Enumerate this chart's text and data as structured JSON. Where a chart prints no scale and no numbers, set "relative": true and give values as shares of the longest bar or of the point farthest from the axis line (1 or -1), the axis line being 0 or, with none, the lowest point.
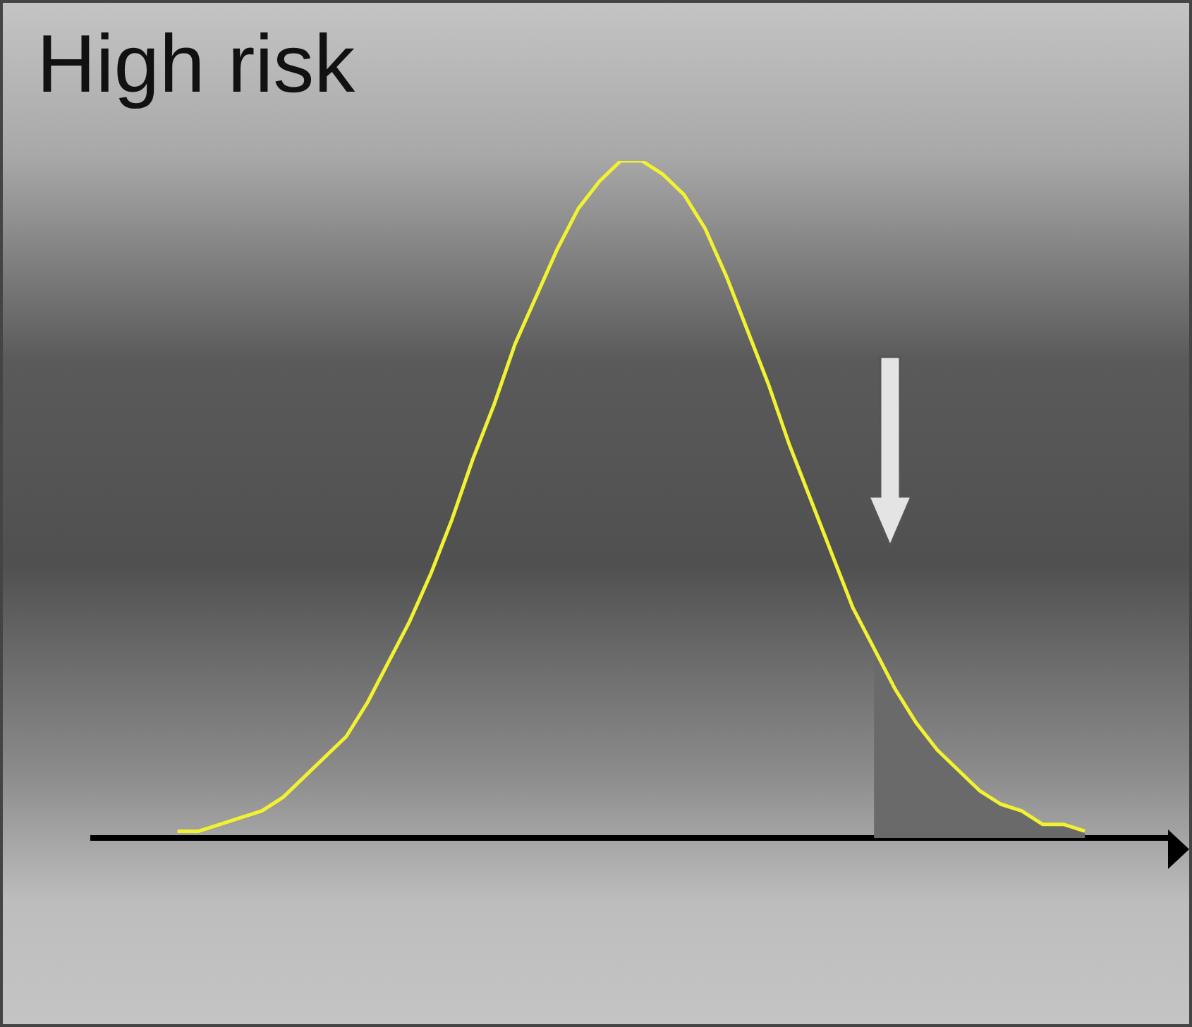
{
  "chart_data": {
    "type": "line",
    "title": "High risk",
    "relative": true,
    "categories": [
      null,
      null,
      null,
      null,
      null,
      null,
      null,
      null,
      null,
      null,
      null,
      null,
      null,
      null,
      null,
      null,
      null,
      null,
      null,
      null,
      null,
      null,
      null,
      null,
      null,
      null,
      null,
      null,
      null,
      null,
      null,
      null,
      null,
      null,
      null,
      null,
      null,
      null,
      null,
      null,
      null,
      null,
      null,
      null,
      null,
      null,
      null,
      null,
      null,
      null,
      null,
      null
    ],
    "series": [
      {
        "type": "line",
        "color": "#f2f230",
        "values": [
          null,
          null,
          null,
          null,
          0.01,
          0.01,
          0.02,
          0.03,
          0.04,
          0.06,
          0.09,
          0.12,
          0.15,
          0.2,
          0.26,
          0.32,
          0.39,
          0.47,
          0.56,
          0.64,
          0.73,
          0.8,
          0.87,
          0.93,
          0.97,
          1,
          1,
          0.98,
          0.95,
          0.9,
          0.83,
          0.75,
          0.67,
          0.58,
          0.5,
          0.42,
          0.34,
          0.28,
          0.22,
          0.17,
          0.13,
          0.1,
          0.07,
          0.05,
          0.04,
          0.02,
          0.02,
          0.01,
          null,
          null,
          null,
          null
        ]
      },
      {
        "type": "area",
        "color": "#6a6a6a",
        "values": [
          null,
          null,
          null,
          null,
          null,
          null,
          null,
          null,
          null,
          null,
          null,
          null,
          null,
          null,
          null,
          null,
          null,
          null,
          null,
          null,
          null,
          null,
          null,
          null,
          null,
          null,
          null,
          null,
          null,
          null,
          null,
          null,
          null,
          null,
          null,
          null,
          null,
          0.28,
          0.22,
          0.17,
          0.13,
          0.1,
          0.07,
          0.05,
          0.04,
          0.02,
          0.02,
          0.01,
          null,
          null,
          null,
          null
        ]
      }
    ]
  }
}
